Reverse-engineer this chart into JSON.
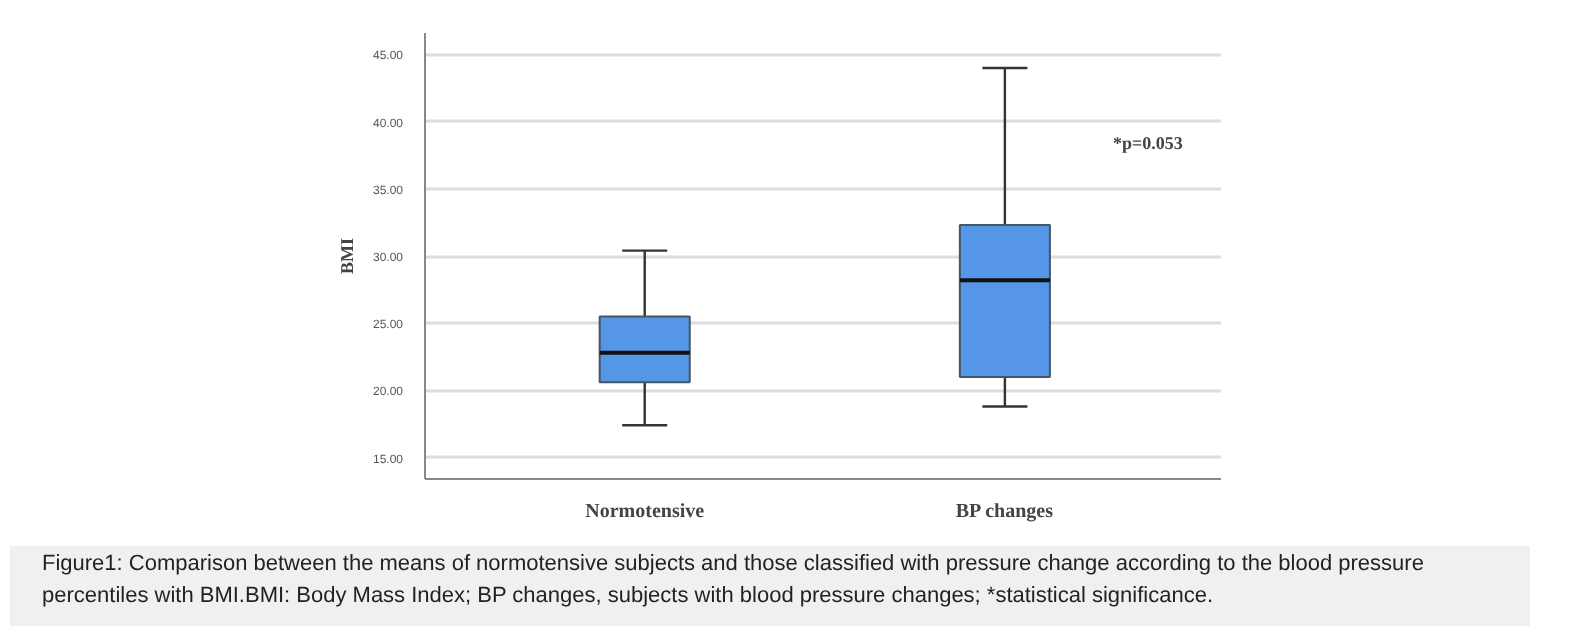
{
  "chart_data": {
    "type": "box",
    "ylabel": "BMI",
    "categories": [
      "Normotensive",
      "BP changes"
    ],
    "boxes": [
      {
        "low": 17.4,
        "q1": 20.6,
        "median": 22.8,
        "q3": 25.5,
        "high": 30.4
      },
      {
        "low": 18.8,
        "q1": 21.0,
        "median": 28.2,
        "q3": 32.3,
        "high": 44.0
      }
    ],
    "color": "#5596e6",
    "ylim": [
      13.4,
      46.6
    ],
    "yticks": [
      {
        "value": 15,
        "label": "15.00"
      },
      {
        "value": 20,
        "label": "20.00"
      },
      {
        "value": 25,
        "label": "25.00"
      },
      {
        "value": 30,
        "label": "30.00"
      },
      {
        "value": 35,
        "label": "35.00"
      },
      {
        "value": 40,
        "label": "40.00"
      },
      {
        "value": 45,
        "label": "45.00"
      }
    ],
    "grid": "y",
    "annotations": [
      "*p=0.053",
      "Figure1:  Comparison between the means of normotensive subjects and those classified with pressure change according to the blood pressure percentiles with BMI.BMI: Body Mass Index; BP changes, subjects with blood pressure changes; *statistical significance."
    ]
  }
}
